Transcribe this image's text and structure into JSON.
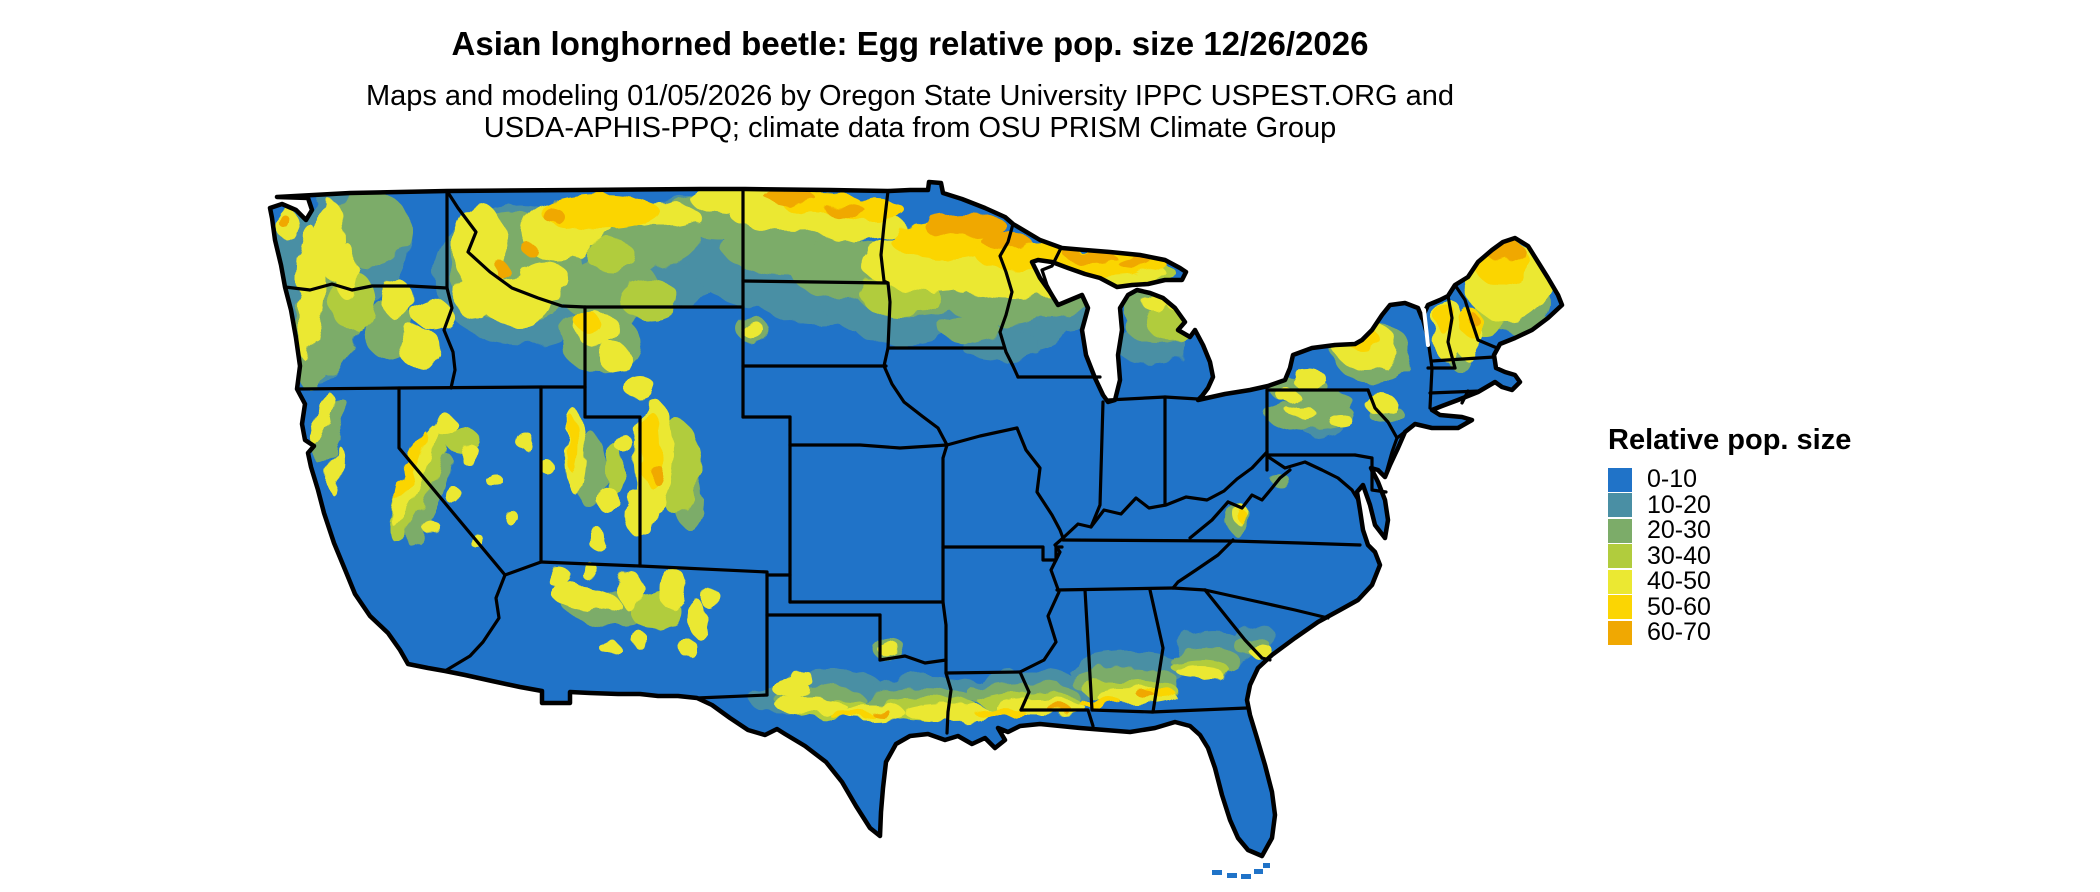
{
  "header": {
    "title": "Asian longhorned beetle: Egg relative pop. size 12/26/2026",
    "subtitle_line1": "Maps and modeling 01/05/2026 by Oregon State University IPPC USPEST.ORG and",
    "subtitle_line2": "USDA-APHIS-PPQ; climate data from OSU PRISM Climate Group"
  },
  "legend": {
    "title": "Relative pop. size",
    "items": [
      {
        "label": "0-10",
        "color": "#2073C8"
      },
      {
        "label": "10-20",
        "color": "#4A8FA4"
      },
      {
        "label": "20-30",
        "color": "#7CAC69"
      },
      {
        "label": "30-40",
        "color": "#B1CC3D"
      },
      {
        "label": "40-50",
        "color": "#EBE832"
      },
      {
        "label": "50-60",
        "color": "#FBD503"
      },
      {
        "label": "60-70",
        "color": "#F0A802"
      }
    ]
  },
  "map": {
    "base_color": "#2073C8",
    "border_color": "#000000",
    "background_color": "#FFFFFF",
    "region": "Contiguous United States with state boundaries"
  }
}
